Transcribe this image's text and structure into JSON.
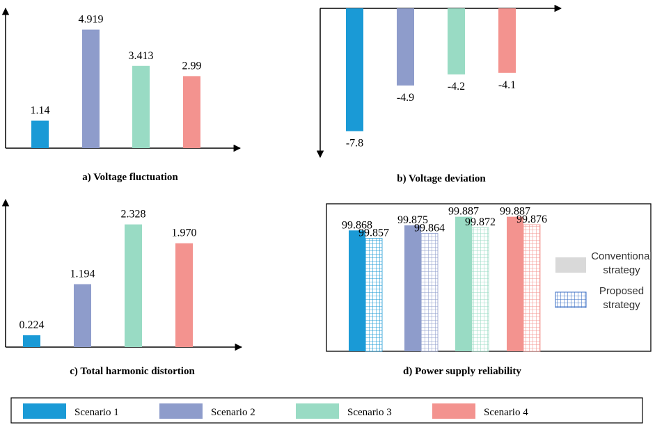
{
  "colors": {
    "s1": "#1a9ad6",
    "s2": "#8e9ccb",
    "s3": "#99dbc4",
    "s4": "#f3938f"
  },
  "scenarios": [
    "Scenario 1",
    "Scenario 2",
    "Scenario 3",
    "Scenario 4"
  ],
  "chart_data": [
    {
      "id": "a",
      "type": "bar",
      "title": "a) Voltage fluctuation",
      "categories": [
        "Scenario 1",
        "Scenario 2",
        "Scenario 3",
        "Scenario 4"
      ],
      "values": [
        1.14,
        4.919,
        3.413,
        2.99
      ],
      "labels": [
        "1.14",
        "4.919",
        "3.413",
        "2.99"
      ],
      "ylim": [
        0,
        5.6
      ]
    },
    {
      "id": "b",
      "type": "bar",
      "title": "b) Voltage deviation",
      "categories": [
        "Scenario 1",
        "Scenario 2",
        "Scenario 3",
        "Scenario 4"
      ],
      "values": [
        -7.8,
        -4.9,
        -4.2,
        -4.1
      ],
      "labels": [
        "-7.8",
        "-4.9",
        "-4.2",
        "-4.1"
      ],
      "ylim": [
        -9.5,
        0
      ]
    },
    {
      "id": "c",
      "type": "bar",
      "title": "c) Total harmonic distortion",
      "categories": [
        "Scenario 1",
        "Scenario 2",
        "Scenario 3",
        "Scenario 4"
      ],
      "values": [
        0.224,
        1.194,
        2.328,
        1.97
      ],
      "labels": [
        "0.224",
        "1.194",
        "2.328",
        "1.970"
      ],
      "ylim": [
        0,
        2.6
      ]
    },
    {
      "id": "d",
      "type": "bar",
      "title": "d) Power supply reliability",
      "categories": [
        "Scenario 1",
        "Scenario 2",
        "Scenario 3",
        "Scenario 4"
      ],
      "series": [
        {
          "name": "Conventional strategy",
          "values": [
            99.868,
            99.875,
            99.887,
            99.887
          ],
          "labels": [
            "99.868",
            "99.875",
            "99.887",
            "99.887"
          ]
        },
        {
          "name": "Proposed strategy",
          "values": [
            99.857,
            99.864,
            99.872,
            99.876
          ],
          "labels": [
            "99.857",
            "99.864",
            "99.872",
            "99.876"
          ]
        }
      ],
      "ylim": [
        99.7,
        99.905
      ],
      "legend": [
        {
          "line1": "Conventional",
          "line2": "strategy"
        },
        {
          "line1": "Proposed",
          "line2": "strategy"
        }
      ]
    }
  ]
}
